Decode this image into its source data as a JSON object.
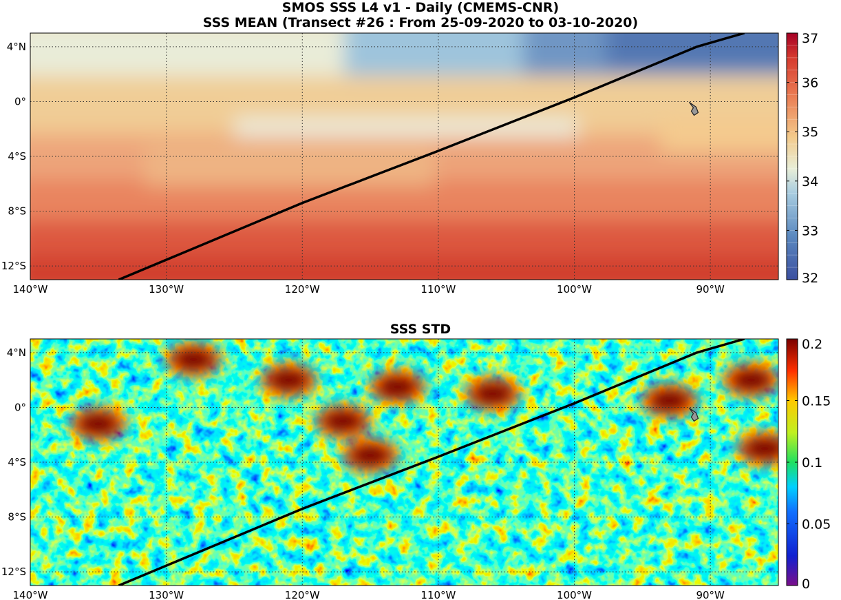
{
  "chart_data": [
    {
      "type": "heatmap",
      "title": "SMOS SSS L4 v1 - Daily (CMEMS-CNR)",
      "subtitle": "SSS MEAN (Transect #26 : From 25-09-2020 to 03-10-2020)",
      "xlim": [
        -140,
        -85
      ],
      "ylim": [
        -13,
        5
      ],
      "x_ticks": [
        -140,
        -130,
        -120,
        -110,
        -100,
        -90
      ],
      "x_tick_labels": [
        "140°W",
        "130°W",
        "120°W",
        "110°W",
        "100°W",
        "90°W"
      ],
      "y_ticks": [
        4,
        0,
        -4,
        -8,
        -12
      ],
      "y_tick_labels": [
        "4°N",
        "0°",
        "4°S",
        "8°S",
        "12°S"
      ],
      "grid": true,
      "colorbar": {
        "range": [
          32,
          37
        ],
        "ticks": [
          32,
          33,
          34,
          35,
          36,
          37
        ],
        "tick_labels": [
          "32",
          "33",
          "34",
          "35",
          "36",
          "37"
        ],
        "colormap": "diverging red-yellow-blue, reversed",
        "levels": 20
      },
      "transect": {
        "x": [
          -133.5,
          -120,
          -110,
          -100,
          -91,
          -87.5
        ],
        "y": [
          -13,
          -7.4,
          -3.6,
          0.3,
          4.0,
          5.0
        ]
      },
      "island_marker": {
        "x": -91.2,
        "y": -0.5
      },
      "field_summary": [
        {
          "region": "north-east",
          "x": [
            -105,
            -85
          ],
          "y": [
            1,
            5
          ],
          "sss": 33.0
        },
        {
          "region": "equatorial band",
          "x": [
            -140,
            -85
          ],
          "y": [
            -5,
            0
          ],
          "sss": 35.0
        },
        {
          "region": "south",
          "x": [
            -140,
            -85
          ],
          "y": [
            -13,
            -8
          ],
          "sss": 36.0
        }
      ]
    },
    {
      "type": "heatmap",
      "title": "SSS STD",
      "xlim": [
        -140,
        -85
      ],
      "ylim": [
        -13,
        5
      ],
      "x_ticks": [
        -140,
        -130,
        -120,
        -110,
        -100,
        -90
      ],
      "x_tick_labels": [
        "140°W",
        "130°W",
        "120°W",
        "110°W",
        "100°W",
        "90°W"
      ],
      "y_ticks": [
        4,
        0,
        -4,
        -8,
        -12
      ],
      "y_tick_labels": [
        "4°N",
        "0°",
        "4°S",
        "8°S",
        "12°S"
      ],
      "grid": true,
      "colorbar": {
        "range": [
          0,
          0.2
        ],
        "ticks": [
          0,
          0.05,
          0.1,
          0.15,
          0.2
        ],
        "tick_labels": [
          "0",
          "0.05",
          "0.1",
          "0.15",
          "0.2"
        ],
        "colormap": "jet"
      },
      "transect": {
        "x": [
          -133.5,
          -120,
          -110,
          -100,
          -91,
          -87.5
        ],
        "y": [
          -13,
          -7.4,
          -3.6,
          0.3,
          4.0,
          5.0
        ]
      },
      "island_marker": {
        "x": -91.2,
        "y": -0.5
      },
      "high_std_patches": [
        {
          "x": -128,
          "y": 3.5
        },
        {
          "x": -121,
          "y": 2.0
        },
        {
          "x": -117,
          "y": -1.0
        },
        {
          "x": -115,
          "y": -3.5
        },
        {
          "x": -113,
          "y": 1.5
        },
        {
          "x": -106,
          "y": 1.0
        },
        {
          "x": -93,
          "y": 0.5
        },
        {
          "x": -86,
          "y": -3.0
        },
        {
          "x": -87,
          "y": 2.0
        },
        {
          "x": -135,
          "y": -1.2
        }
      ]
    }
  ]
}
